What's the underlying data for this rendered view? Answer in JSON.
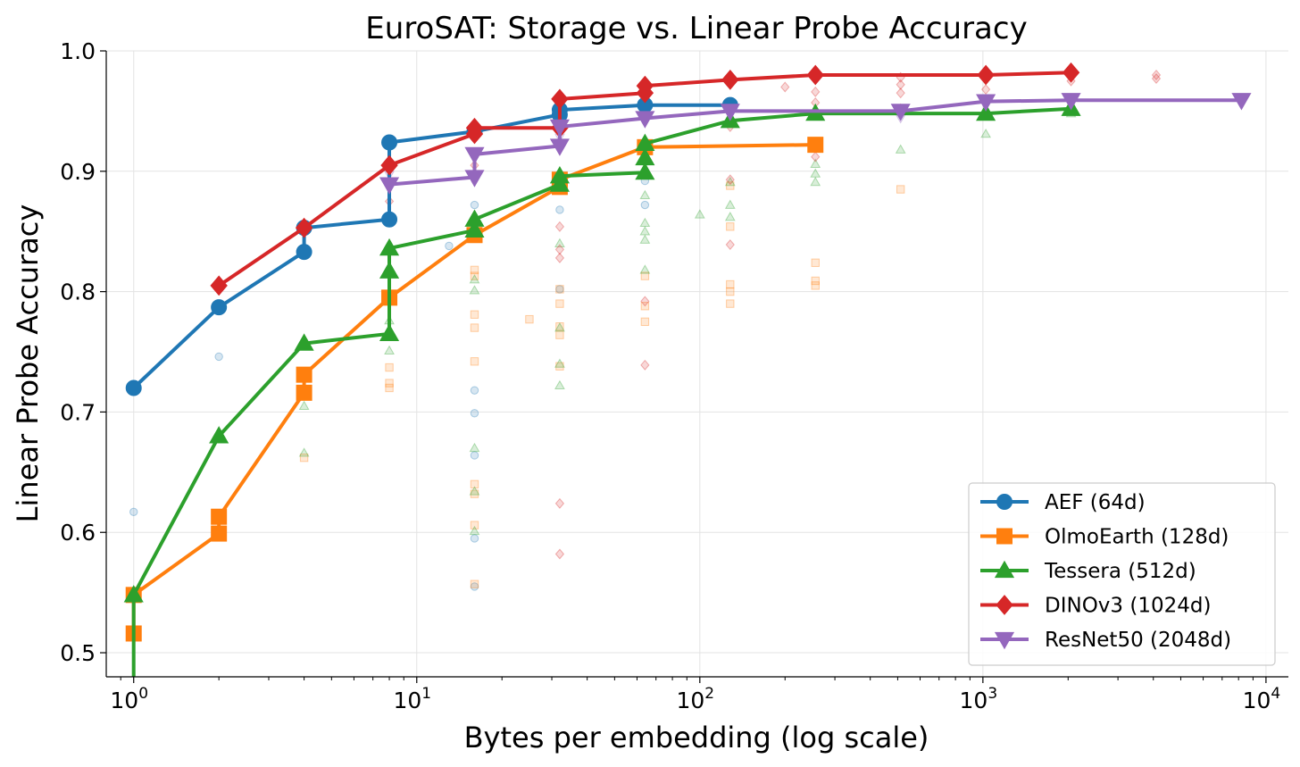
{
  "chart_data": {
    "type": "line",
    "title": "EuroSAT: Storage vs. Linear Probe Accuracy",
    "xlabel": "Bytes per embedding (log scale)",
    "ylabel": "Linear Probe Accuracy",
    "xscale": "log",
    "xlim": [
      0.8,
      12000
    ],
    "ylim": [
      0.48,
      1.0
    ],
    "x_ticks": [
      {
        "value": 1,
        "base": "10",
        "exp": "0"
      },
      {
        "value": 10,
        "base": "10",
        "exp": "1"
      },
      {
        "value": 100,
        "base": "10",
        "exp": "2"
      },
      {
        "value": 1000,
        "base": "10",
        "exp": "3"
      },
      {
        "value": 10000,
        "base": "10",
        "exp": "4"
      }
    ],
    "y_ticks": [
      {
        "value": 0.5,
        "label": "0.5"
      },
      {
        "value": 0.6,
        "label": "0.6"
      },
      {
        "value": 0.7,
        "label": "0.7"
      },
      {
        "value": 0.8,
        "label": "0.8"
      },
      {
        "value": 0.9,
        "label": "0.9"
      },
      {
        "value": 1.0,
        "label": "1.0"
      }
    ],
    "grid": true,
    "legend_position": "lower-right",
    "series": [
      {
        "name": "AEF (64d)",
        "color": "#1f77b4",
        "marker": "circle",
        "frontier": [
          [
            1,
            0.72
          ],
          [
            2,
            0.787
          ],
          [
            4,
            0.833
          ],
          [
            4,
            0.853
          ],
          [
            8,
            0.86
          ],
          [
            8,
            0.924
          ],
          [
            16,
            0.933
          ],
          [
            32,
            0.947
          ],
          [
            32,
            0.951
          ],
          [
            64,
            0.955
          ],
          [
            128,
            0.955
          ]
        ],
        "scatter": [
          [
            1,
            0.617
          ],
          [
            2,
            0.746
          ],
          [
            13,
            0.838
          ],
          [
            16,
            0.872
          ],
          [
            16,
            0.718
          ],
          [
            16,
            0.699
          ],
          [
            16,
            0.664
          ],
          [
            16,
            0.595
          ],
          [
            16,
            0.555
          ],
          [
            32,
            0.868
          ],
          [
            32,
            0.802
          ],
          [
            64,
            0.872
          ],
          [
            64,
            0.892
          ]
        ]
      },
      {
        "name": "OlmoEarth (128d)",
        "color": "#ff7f0e",
        "marker": "square",
        "frontier": [
          [
            1,
            0.516
          ],
          [
            1,
            0.548
          ],
          [
            2,
            0.599
          ],
          [
            2,
            0.613
          ],
          [
            4,
            0.716
          ],
          [
            4,
            0.731
          ],
          [
            8,
            0.795
          ],
          [
            16,
            0.847
          ],
          [
            32,
            0.887
          ],
          [
            32,
            0.893
          ],
          [
            64,
            0.92
          ],
          [
            256,
            0.922
          ]
        ],
        "scatter": [
          [
            4,
            0.662
          ],
          [
            8,
            0.72
          ],
          [
            8,
            0.724
          ],
          [
            8,
            0.737
          ],
          [
            16,
            0.818
          ],
          [
            16,
            0.813
          ],
          [
            16,
            0.781
          ],
          [
            16,
            0.77
          ],
          [
            16,
            0.742
          ],
          [
            16,
            0.64
          ],
          [
            16,
            0.632
          ],
          [
            16,
            0.606
          ],
          [
            16,
            0.557
          ],
          [
            25,
            0.777
          ],
          [
            32,
            0.802
          ],
          [
            32,
            0.79
          ],
          [
            32,
            0.771
          ],
          [
            32,
            0.764
          ],
          [
            32,
            0.738
          ],
          [
            64,
            0.813
          ],
          [
            64,
            0.788
          ],
          [
            64,
            0.775
          ],
          [
            128,
            0.888
          ],
          [
            128,
            0.854
          ],
          [
            128,
            0.806
          ],
          [
            128,
            0.8
          ],
          [
            128,
            0.79
          ],
          [
            256,
            0.824
          ],
          [
            256,
            0.809
          ],
          [
            256,
            0.805
          ],
          [
            512,
            0.885
          ]
        ]
      },
      {
        "name": "Tessera (512d)",
        "color": "#2ca02c",
        "marker": "triangle-up",
        "frontier": [
          [
            1,
            0.46
          ],
          [
            1,
            0.548
          ],
          [
            2,
            0.68
          ],
          [
            4,
            0.757
          ],
          [
            8,
            0.765
          ],
          [
            8,
            0.817
          ],
          [
            8,
            0.836
          ],
          [
            16,
            0.851
          ],
          [
            16,
            0.86
          ],
          [
            32,
            0.889
          ],
          [
            32,
            0.896
          ],
          [
            64,
            0.899
          ],
          [
            64,
            0.911
          ],
          [
            64,
            0.923
          ],
          [
            128,
            0.942
          ],
          [
            256,
            0.948
          ],
          [
            1024,
            0.948
          ],
          [
            2048,
            0.952
          ]
        ],
        "scatter": [
          [
            4,
            0.705
          ],
          [
            4,
            0.666
          ],
          [
            8,
            0.776
          ],
          [
            8,
            0.751
          ],
          [
            16,
            0.81
          ],
          [
            16,
            0.801
          ],
          [
            16,
            0.67
          ],
          [
            16,
            0.634
          ],
          [
            16,
            0.601
          ],
          [
            32,
            0.84
          ],
          [
            32,
            0.77
          ],
          [
            32,
            0.74
          ],
          [
            32,
            0.722
          ],
          [
            64,
            0.88
          ],
          [
            64,
            0.857
          ],
          [
            64,
            0.85
          ],
          [
            64,
            0.843
          ],
          [
            64,
            0.818
          ],
          [
            100,
            0.864
          ],
          [
            128,
            0.872
          ],
          [
            128,
            0.862
          ],
          [
            128,
            0.891
          ],
          [
            256,
            0.906
          ],
          [
            256,
            0.898
          ],
          [
            256,
            0.891
          ],
          [
            512,
            0.918
          ],
          [
            1024,
            0.931
          ],
          [
            2048,
            0.948
          ]
        ]
      },
      {
        "name": "DINOv3 (1024d)",
        "color": "#d62728",
        "marker": "diamond",
        "frontier": [
          [
            2,
            0.805
          ],
          [
            4,
            0.853
          ],
          [
            8,
            0.905
          ],
          [
            16,
            0.931
          ],
          [
            16,
            0.936
          ],
          [
            32,
            0.936
          ],
          [
            32,
            0.96
          ],
          [
            64,
            0.965
          ],
          [
            64,
            0.971
          ],
          [
            128,
            0.976
          ],
          [
            256,
            0.98
          ],
          [
            1024,
            0.98
          ],
          [
            2048,
            0.982
          ]
        ],
        "scatter": [
          [
            8,
            0.875
          ],
          [
            16,
            0.905
          ],
          [
            32,
            0.854
          ],
          [
            32,
            0.835
          ],
          [
            32,
            0.828
          ],
          [
            32,
            0.624
          ],
          [
            32,
            0.582
          ],
          [
            64,
            0.792
          ],
          [
            64,
            0.739
          ],
          [
            128,
            0.893
          ],
          [
            128,
            0.839
          ],
          [
            128,
            0.937
          ],
          [
            200,
            0.97
          ],
          [
            256,
            0.966
          ],
          [
            256,
            0.957
          ],
          [
            256,
            0.912
          ],
          [
            512,
            0.978
          ],
          [
            512,
            0.972
          ],
          [
            512,
            0.965
          ],
          [
            512,
            0.952
          ],
          [
            1024,
            0.968
          ],
          [
            2048,
            0.975
          ],
          [
            4096,
            0.98
          ],
          [
            4096,
            0.977
          ]
        ]
      },
      {
        "name": "ResNet50 (2048d)",
        "color": "#9467bd",
        "marker": "triangle-down",
        "frontier": [
          [
            8,
            0.889
          ],
          [
            16,
            0.895
          ],
          [
            16,
            0.914
          ],
          [
            32,
            0.921
          ],
          [
            32,
            0.937
          ],
          [
            64,
            0.944
          ],
          [
            128,
            0.95
          ],
          [
            512,
            0.95
          ],
          [
            1024,
            0.958
          ],
          [
            2048,
            0.959
          ],
          [
            8192,
            0.959
          ]
        ],
        "scatter": [
          [
            8,
            0.897
          ],
          [
            32,
            0.928
          ],
          [
            128,
            0.952
          ],
          [
            512,
            0.944
          ],
          [
            2048,
            0.955
          ]
        ]
      }
    ]
  }
}
